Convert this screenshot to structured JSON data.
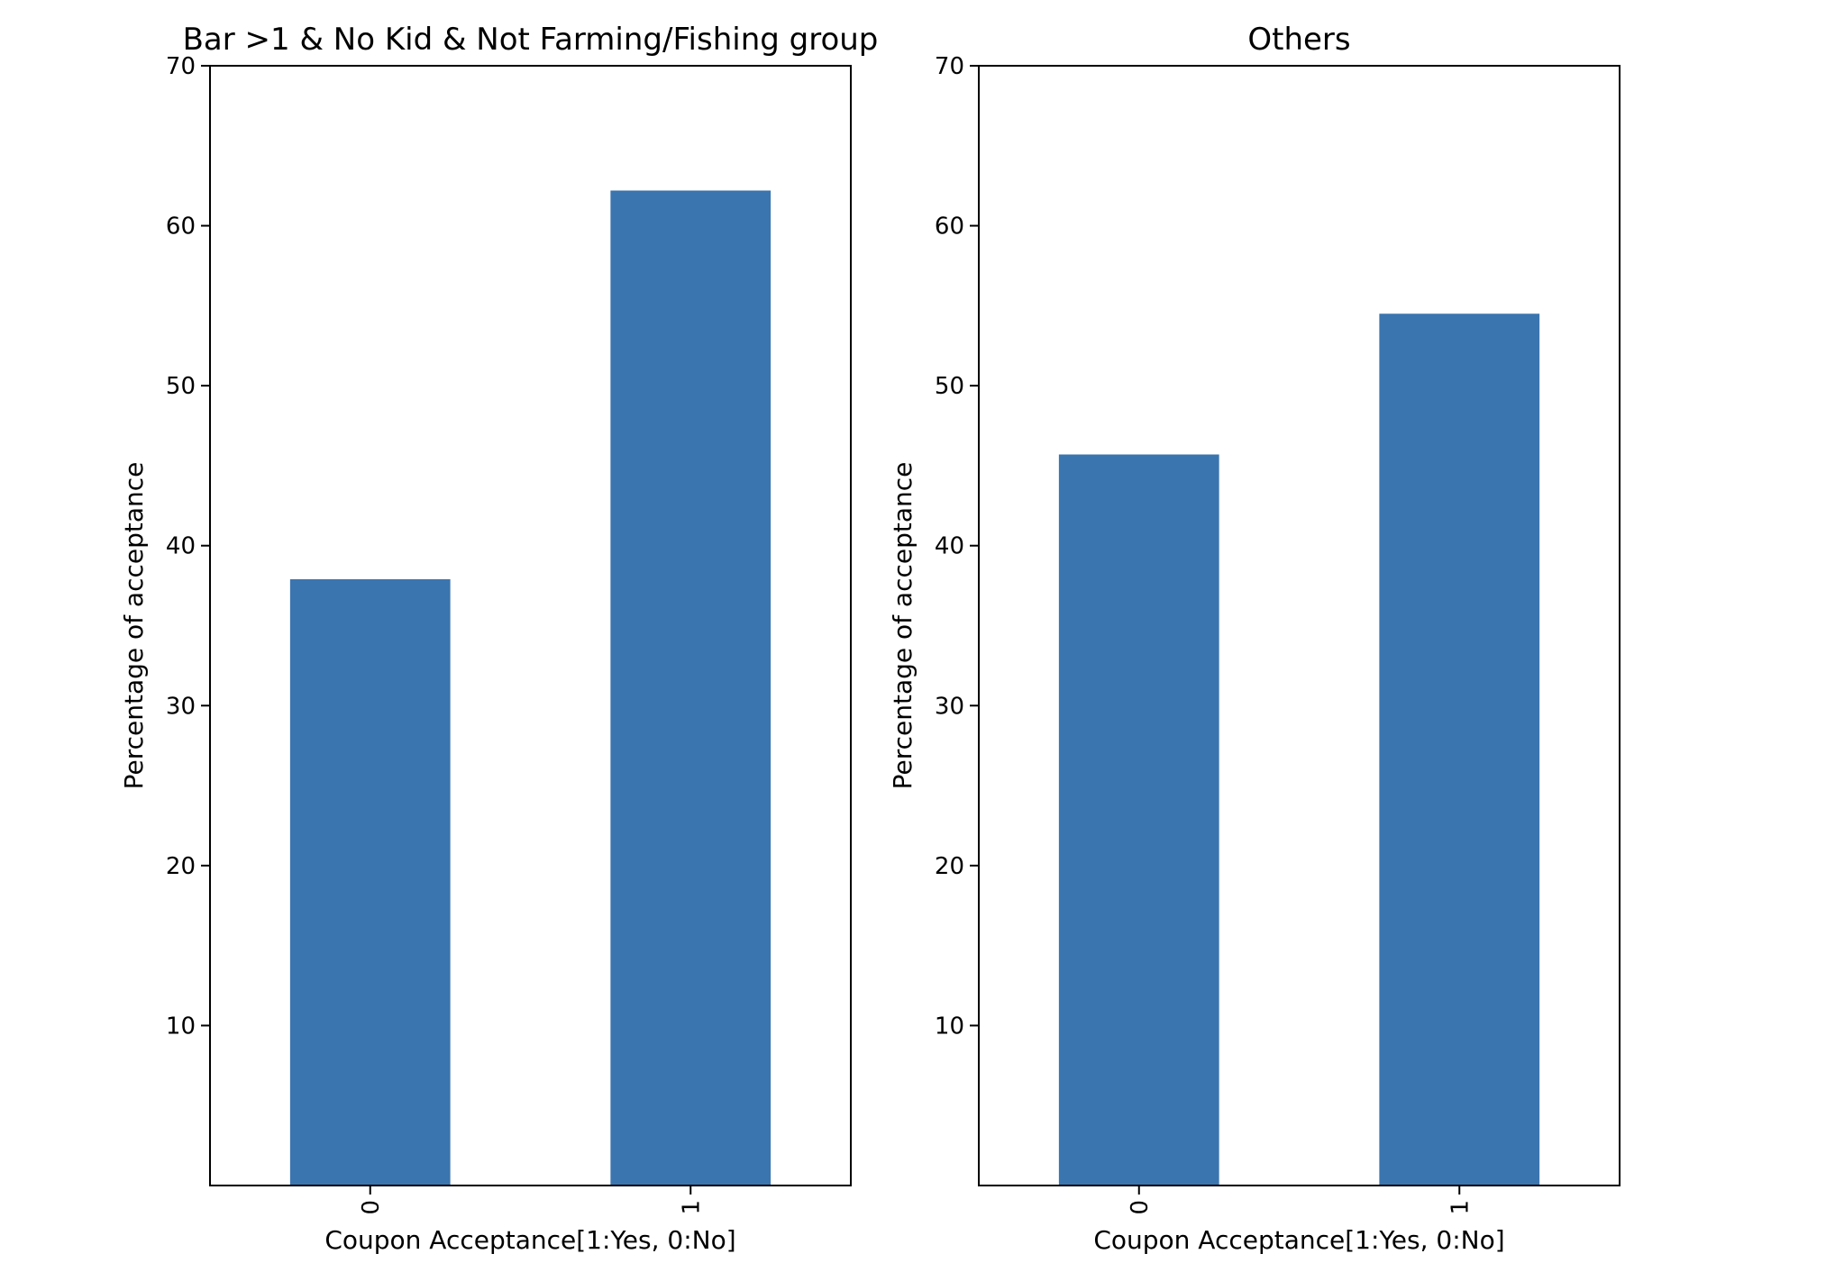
{
  "chart_data": [
    {
      "type": "bar",
      "title": "Bar >1 & No Kid & Not Farming/Fishing group",
      "xlabel": "Coupon Acceptance[1:Yes, 0:No]",
      "ylabel": "Percentage of acceptance",
      "categories": [
        "0",
        "1"
      ],
      "values": [
        37.9,
        62.2
      ],
      "ylim": [
        0,
        70
      ],
      "yticks": [
        "10",
        "20",
        "30",
        "40",
        "50",
        "60",
        "70"
      ],
      "bar_color": "#3b75af",
      "grid": false,
      "legend": "none"
    },
    {
      "type": "bar",
      "title": "Others",
      "xlabel": "Coupon Acceptance[1:Yes, 0:No]",
      "ylabel": "Percentage of acceptance",
      "categories": [
        "0",
        "1"
      ],
      "values": [
        45.7,
        54.5
      ],
      "ylim": [
        0,
        70
      ],
      "yticks": [
        "10",
        "20",
        "30",
        "40",
        "50",
        "60",
        "70"
      ],
      "bar_color": "#3b75af",
      "grid": false,
      "legend": "none"
    }
  ]
}
